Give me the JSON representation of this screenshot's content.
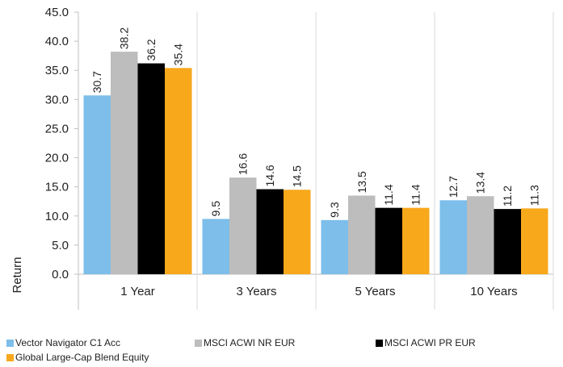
{
  "chart_data": {
    "type": "bar",
    "categories": [
      "1 Year",
      "3 Years",
      "5 Years",
      "10 Years"
    ],
    "series": [
      {
        "name": "Vector Navigator C1 Acc",
        "color": "#7DBEEA",
        "values": [
          30.7,
          9.5,
          9.3,
          12.7
        ]
      },
      {
        "name": "MSCI ACWI NR EUR",
        "color": "#BDBDBD",
        "values": [
          38.2,
          16.6,
          13.5,
          13.4
        ]
      },
      {
        "name": "MSCI ACWI PR EUR",
        "color": "#000000",
        "values": [
          36.2,
          14.6,
          11.4,
          11.2
        ]
      },
      {
        "name": "Global Large-Cap Blend Equity",
        "color": "#F7A81B",
        "values": [
          35.4,
          14.5,
          11.4,
          11.3
        ]
      }
    ],
    "title": "",
    "xlabel": "",
    "ylabel": "Return",
    "ylim": [
      0,
      45
    ],
    "yticks": [
      "0.0",
      "5.0",
      "10.0",
      "15.0",
      "20.0",
      "25.0",
      "30.0",
      "35.0",
      "40.0",
      "45.0"
    ],
    "grid": "vertical category separators",
    "legend_position": "bottom"
  }
}
